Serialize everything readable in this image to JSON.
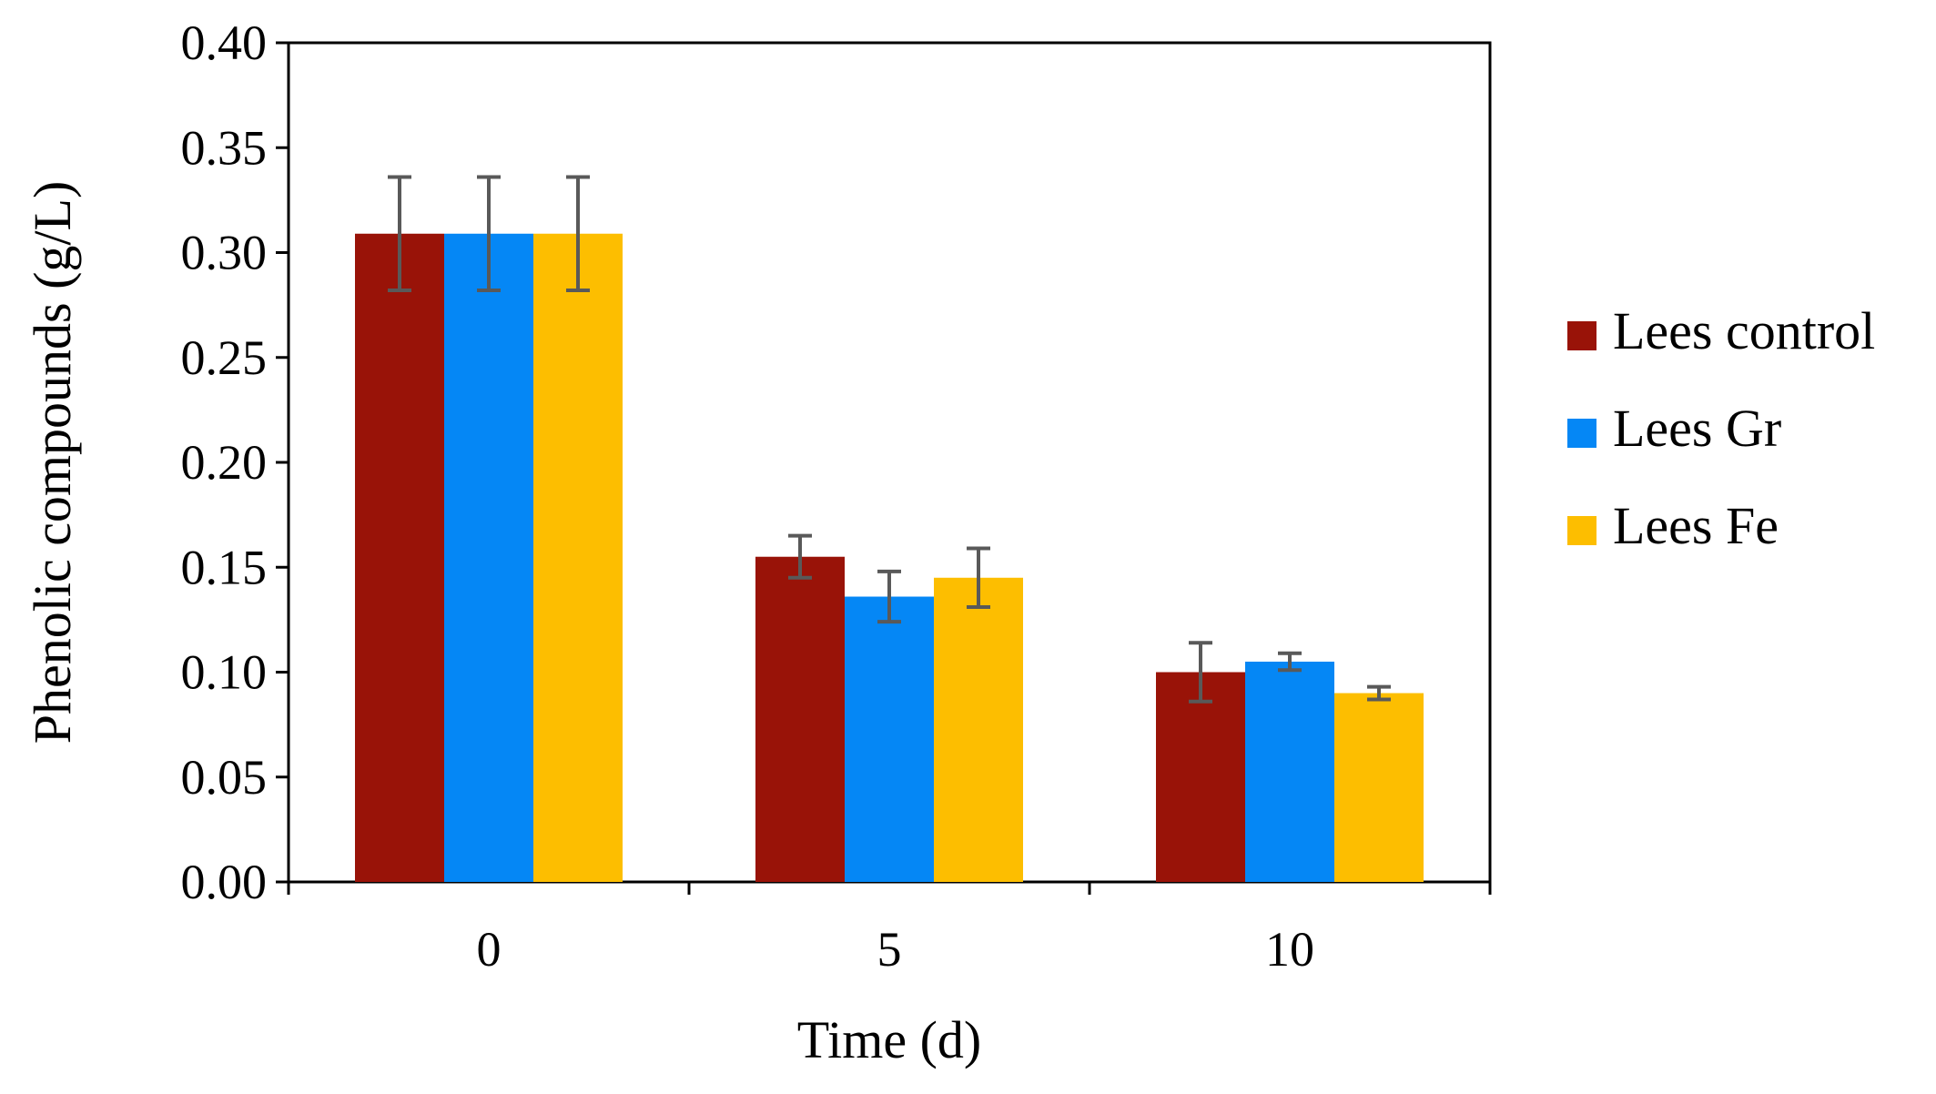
{
  "chart_data": {
    "type": "bar",
    "title": "",
    "xlabel": "Time (d)",
    "ylabel": "Phenolic compounds (g/L)",
    "categories": [
      "0",
      "5",
      "10"
    ],
    "ylim": [
      0,
      0.4
    ],
    "yticks": [
      "0.00",
      "0.05",
      "0.10",
      "0.15",
      "0.20",
      "0.25",
      "0.30",
      "0.35",
      "0.40"
    ],
    "series": [
      {
        "name": "Lees control",
        "color": "#991308",
        "values": [
          0.309,
          0.155,
          0.1
        ],
        "errors": [
          0.027,
          0.01,
          0.014
        ]
      },
      {
        "name": "Lees Gr",
        "color": "#0587F5",
        "values": [
          0.309,
          0.136,
          0.105
        ],
        "errors": [
          0.027,
          0.012,
          0.004
        ]
      },
      {
        "name": "Lees Fe",
        "color": "#FDBE00",
        "values": [
          0.309,
          0.145,
          0.09
        ],
        "errors": [
          0.027,
          0.014,
          0.003
        ]
      }
    ],
    "grid": false,
    "legend_position": "right"
  }
}
